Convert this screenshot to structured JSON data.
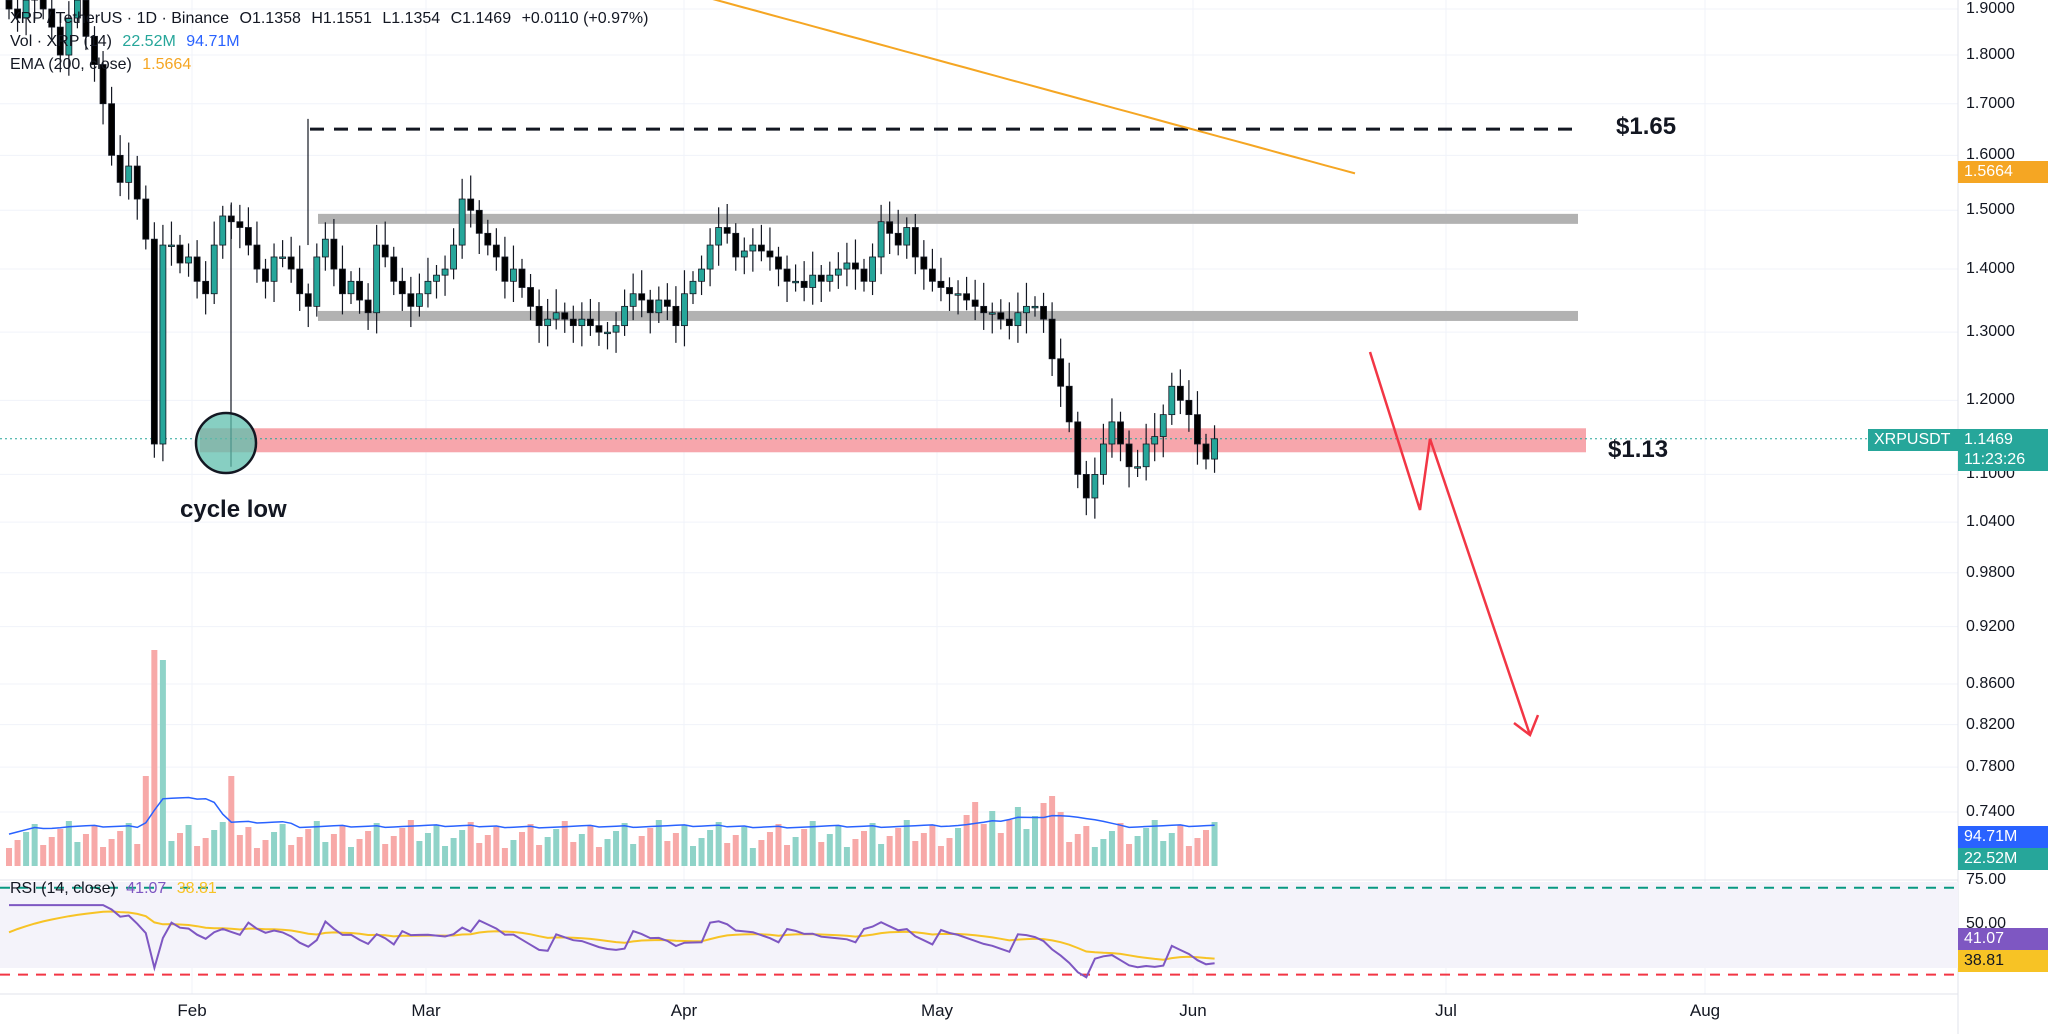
{
  "legend": {
    "symbol_line": "XRP / TetherUS · 1D · Binance",
    "open": "O1.1358",
    "high": "H1.1551",
    "low": "L1.1354",
    "close": "C1.1469",
    "change": "+0.0110 (+0.97%)",
    "vol_label": "Vol · XRP (14)",
    "vol_value1": "22.52M",
    "vol_value2": "94.71M",
    "ema_label": "EMA (200, close)",
    "ema_value": "1.5664",
    "rsi_label": "RSI (14, close)",
    "rsi_value": "41.07",
    "rsi_ma_value": "38.81"
  },
  "annotations": {
    "level_high": "$1.65",
    "level_low": "$1.13",
    "cycle_low": "cycle low"
  },
  "colors": {
    "up": "#26a69a",
    "down": "#000000",
    "vol_up": "#8fd3c8",
    "vol_down": "#f7a9a8",
    "ema": "#f5a623",
    "vol_ma": "#2962ff",
    "rsi": "#7e57c2",
    "rsi_ma": "#f7c325",
    "arrow": "#f23645",
    "support_zone": "#f7a1a8",
    "range_band": "#b2b2b2"
  },
  "price_axis": [
    "1.9000",
    "1.8000",
    "1.7000",
    "1.6000",
    "1.5000",
    "1.4000",
    "1.3000",
    "1.2000",
    "1.1000",
    "1.0400",
    "0.9800",
    "0.9200",
    "0.8600",
    "0.8200",
    "0.7800",
    "0.7400"
  ],
  "badges": {
    "ema": "1.5664",
    "symbol": "XRPUSDT",
    "last": "1.1469",
    "countdown": "11:23:26",
    "vol_ma": "94.71M",
    "vol": "22.52M",
    "rsi_upper": "75.00",
    "rsi_mid": "50.00",
    "rsi": "41.07",
    "rsi_ma": "38.81"
  },
  "months": [
    "Feb",
    "Mar",
    "Apr",
    "May",
    "Jun",
    "Jul",
    "Aug"
  ],
  "chart_data": {
    "type": "candlestick",
    "title": "XRP / TetherUS · 1D · Binance",
    "interval": "1D",
    "ylim": [
      0.74,
      1.9
    ],
    "log_scale": true,
    "x_range_months": [
      "Jan",
      "Feb",
      "Mar",
      "Apr",
      "May",
      "Jun",
      "Jul",
      "Aug"
    ],
    "candles_close": [
      1.9,
      1.88,
      1.92,
      1.95,
      1.9,
      1.86,
      1.8,
      1.88,
      1.92,
      1.84,
      1.78,
      1.7,
      1.6,
      1.55,
      1.58,
      1.52,
      1.45,
      1.14,
      1.44,
      1.44,
      1.41,
      1.42,
      1.38,
      1.36,
      1.44,
      1.49,
      1.48,
      1.47,
      1.44,
      1.4,
      1.38,
      1.42,
      1.42,
      1.4,
      1.36,
      1.34,
      1.42,
      1.45,
      1.4,
      1.36,
      1.38,
      1.35,
      1.33,
      1.44,
      1.42,
      1.38,
      1.36,
      1.34,
      1.36,
      1.38,
      1.39,
      1.4,
      1.44,
      1.52,
      1.5,
      1.46,
      1.44,
      1.42,
      1.38,
      1.4,
      1.37,
      1.34,
      1.31,
      1.32,
      1.33,
      1.32,
      1.31,
      1.32,
      1.31,
      1.3,
      1.3,
      1.31,
      1.34,
      1.36,
      1.35,
      1.33,
      1.35,
      1.34,
      1.31,
      1.36,
      1.38,
      1.4,
      1.44,
      1.47,
      1.46,
      1.42,
      1.43,
      1.44,
      1.43,
      1.42,
      1.4,
      1.38,
      1.38,
      1.37,
      1.39,
      1.38,
      1.39,
      1.4,
      1.41,
      1.4,
      1.38,
      1.42,
      1.48,
      1.46,
      1.44,
      1.47,
      1.42,
      1.4,
      1.38,
      1.37,
      1.36,
      1.36,
      1.35,
      1.34,
      1.33,
      1.33,
      1.32,
      1.31,
      1.33,
      1.34,
      1.34,
      1.32,
      1.26,
      1.22,
      1.17,
      1.1,
      1.07,
      1.1,
      1.14,
      1.17,
      1.14,
      1.11,
      1.11,
      1.14,
      1.15,
      1.18,
      1.22,
      1.2,
      1.18,
      1.14,
      1.12,
      1.147
    ],
    "ema_200": {
      "start": 1.98,
      "end": 1.5664
    },
    "levels": {
      "resistance": 1.65,
      "support": 1.13,
      "range_top": 1.485,
      "range_bottom": 1.325
    },
    "projection": [
      1.27,
      1.055,
      1.147,
      0.81
    ],
    "volume_ma_last": "94.71M",
    "volume_last": "22.52M",
    "rsi_last": 41.07,
    "rsi_ma_last": 38.81,
    "rsi_levels": [
      75,
      50,
      30
    ]
  }
}
